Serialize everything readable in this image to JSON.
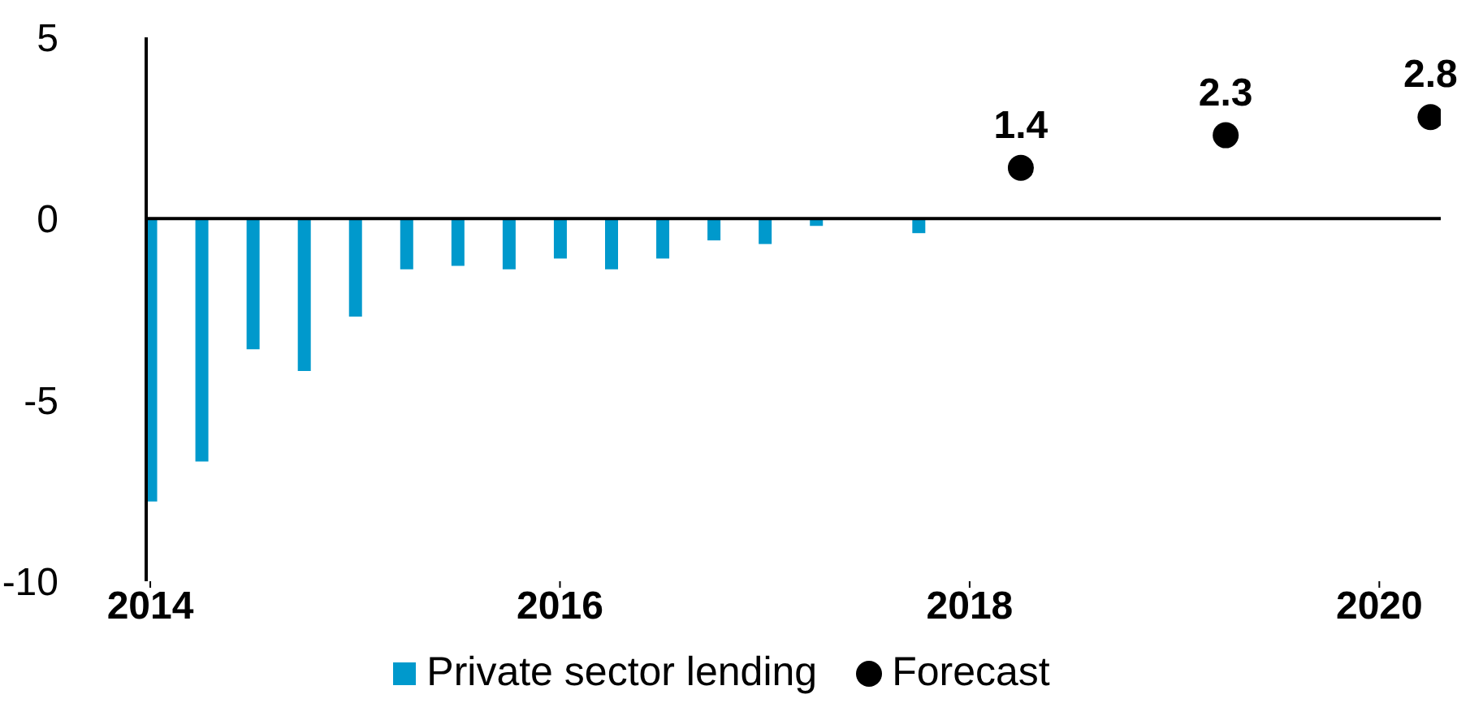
{
  "chart_data": {
    "type": "bar",
    "x": [
      2014,
      2014.25,
      2014.5,
      2014.75,
      2015,
      2015.25,
      2015.5,
      2015.75,
      2016,
      2016.25,
      2016.5,
      2016.75,
      2017,
      2017.25,
      2017.5,
      2017.75
    ],
    "xlim": [
      2013.98,
      2020.3
    ],
    "xticks": [
      2014,
      2016,
      2018,
      2020
    ],
    "ylim": [
      -10,
      5
    ],
    "yticks": [
      -10,
      -5,
      0,
      5
    ],
    "legend": "bottom",
    "ref_lines": [
      {
        "axis": "y",
        "value": 0,
        "color": "#000000"
      }
    ],
    "series": [
      {
        "name": "Private sector lending",
        "color": "#0099cc",
        "values": [
          -7.8,
          -6.7,
          -3.6,
          -4.2,
          -2.7,
          -1.4,
          -1.3,
          -1.4,
          -1.1,
          -1.4,
          -1.1,
          -0.6,
          -0.7,
          -0.2,
          0,
          -0.4
        ]
      },
      {
        "name": "Forecast",
        "type": "scatter",
        "color": "#000000",
        "marker": "circle",
        "x": [
          2018.25,
          2019.25,
          2020.25
        ],
        "values": [
          1.4,
          2.3,
          2.8
        ],
        "value_labels": [
          "1.4",
          "2.3",
          "2.8"
        ]
      }
    ]
  }
}
